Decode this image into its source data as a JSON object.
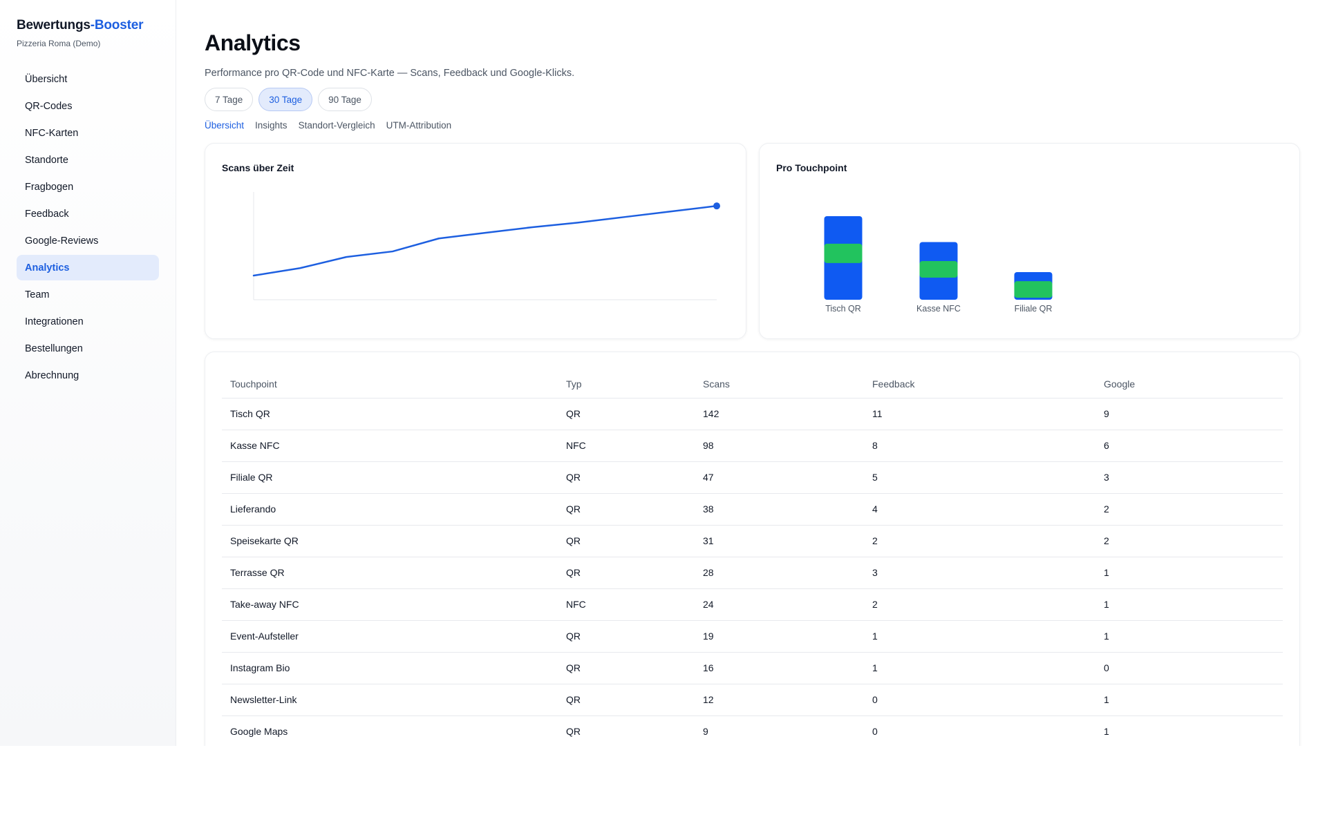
{
  "sidebar": {
    "brand_part1": "Bewertungs",
    "brand_part2": "-Booster",
    "subtitle": "Pizzeria Roma (Demo)",
    "items": [
      {
        "label": "Übersicht"
      },
      {
        "label": "QR-Codes"
      },
      {
        "label": "NFC-Karten"
      },
      {
        "label": "Standorte"
      },
      {
        "label": "Fragbogen"
      },
      {
        "label": "Feedback"
      },
      {
        "label": "Google-Reviews"
      },
      {
        "label": "Analytics",
        "active": true
      },
      {
        "label": "Team"
      },
      {
        "label": "Integrationen"
      },
      {
        "label": "Bestellungen"
      },
      {
        "label": "Abrechnung"
      }
    ]
  },
  "header": {
    "title": "Analytics",
    "subtitle": "Performance pro QR-Code und NFC-Karte — Scans, Feedback und Google-Klicks."
  },
  "ranges": [
    {
      "label": "7 Tage"
    },
    {
      "label": "30 Tage",
      "active": true
    },
    {
      "label": "90 Tage"
    }
  ],
  "subtabs": [
    {
      "label": "Übersicht",
      "active": true
    },
    {
      "label": "Insights"
    },
    {
      "label": "Standort-Vergleich"
    },
    {
      "label": "UTM-Attribution"
    }
  ],
  "colors": {
    "accent": "#1d5fe0",
    "bar_blue": "#0f5af2",
    "bar_green": "#22c35e"
  },
  "line_chart": {
    "title": "Scans über Zeit",
    "chart_data": {
      "type": "line",
      "x": [
        0,
        1,
        2,
        3,
        4,
        5,
        6,
        7,
        8,
        9,
        10
      ],
      "values": [
        26,
        34,
        46,
        52,
        66,
        72,
        78,
        83,
        89,
        95,
        101
      ],
      "ylim": [
        0,
        116
      ],
      "grid": false,
      "marker_last": true
    }
  },
  "bar_chart": {
    "title": "Pro Touchpoint",
    "chart_data": {
      "type": "bar",
      "stacked": true,
      "categories": [
        "Tisch QR",
        "Kasse NFC",
        "Filiale QR"
      ],
      "series": [
        {
          "values": [
            142,
            98,
            47
          ],
          "color": "#0f5af2"
        },
        {
          "values": [
            11,
            8,
            5
          ],
          "color": "#22c35e"
        }
      ]
    }
  },
  "table": {
    "headers": [
      "Touchpoint",
      "Typ",
      "Scans",
      "Feedback",
      "Google"
    ],
    "rows": [
      [
        "Tisch QR",
        "QR",
        "142",
        "11",
        "9"
      ],
      [
        "Kasse NFC",
        "NFC",
        "98",
        "8",
        "6"
      ],
      [
        "Filiale QR",
        "QR",
        "47",
        "5",
        "3"
      ],
      [
        "Lieferando",
        "QR",
        "38",
        "4",
        "2"
      ],
      [
        "Speisekarte QR",
        "QR",
        "31",
        "2",
        "2"
      ],
      [
        "Terrasse QR",
        "QR",
        "28",
        "3",
        "1"
      ],
      [
        "Take-away NFC",
        "NFC",
        "24",
        "2",
        "1"
      ],
      [
        "Event-Aufsteller",
        "QR",
        "19",
        "1",
        "1"
      ],
      [
        "Instagram Bio",
        "QR",
        "16",
        "1",
        "0"
      ],
      [
        "Newsletter-Link",
        "QR",
        "12",
        "0",
        "1"
      ],
      [
        "Google Maps",
        "QR",
        "9",
        "0",
        "1"
      ]
    ]
  }
}
